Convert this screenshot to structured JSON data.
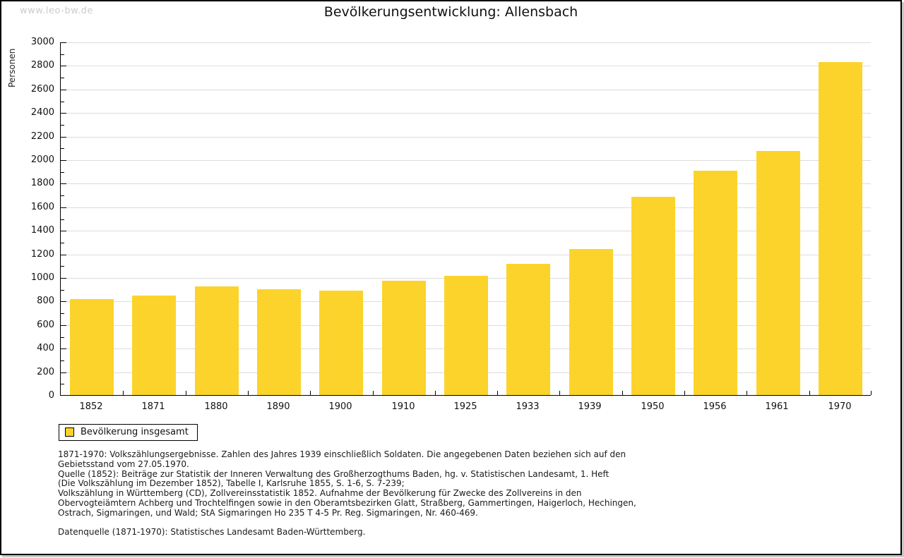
{
  "frame": {
    "watermark": "www.leo-bw.de"
  },
  "chart_data": {
    "type": "bar",
    "title": "Bevölkerungsentwicklung: Allensbach",
    "xlabel": "",
    "ylabel": "Personen",
    "categories": [
      "1852",
      "1871",
      "1880",
      "1890",
      "1900",
      "1910",
      "1925",
      "1933",
      "1939",
      "1950",
      "1956",
      "1961",
      "1970"
    ],
    "values": [
      815,
      845,
      922,
      896,
      885,
      970,
      1014,
      1114,
      1237,
      1685,
      1905,
      2070,
      2825
    ],
    "ylim": [
      0,
      3000
    ],
    "ytick_step": 200,
    "ytick_minor_step": 100,
    "grid": true,
    "legend_position": "bottom-left",
    "colors": {
      "bar": "#fcd32b",
      "grid": "#dcdcdc",
      "axis": "#000000",
      "watermark": "#cccccc"
    },
    "legend": {
      "label": "Bevölkerung insgesamt"
    }
  },
  "footnotes": {
    "lines": [
      "1871-1970: Volkszählungsergebnisse. Zahlen des Jahres 1939 einschließlich Soldaten. Die angegebenen Daten beziehen sich auf den",
      "Gebietsstand vom 27.05.1970.",
      "Quelle (1852): Beiträge zur Statistik der Inneren Verwaltung des Großherzogthums Baden, hg. v. Statistischen Landesamt, 1. Heft",
      "(Die Volkszählung im Dezember 1852), Tabelle I, Karlsruhe 1855, S. 1-6, S. 7-239;",
      "Volkszählung in Württemberg (CD), Zollvereinsstatistik 1852. Aufnahme der Bevölkerung für Zwecke des Zollvereins in den",
      "Obervogteiämtern Achberg und Trochtelfingen sowie in den Oberamtsbezirken Glatt, Straßberg, Gammertingen, Haigerloch, Hechingen,",
      "Ostrach, Sigmaringen, und Wald; StA Sigmaringen Ho 235 T 4-5 Pr. Reg. Sigmaringen, Nr. 460-469."
    ],
    "source": "Datenquelle (1871-1970): Statistisches Landesamt Baden-Württemberg."
  }
}
